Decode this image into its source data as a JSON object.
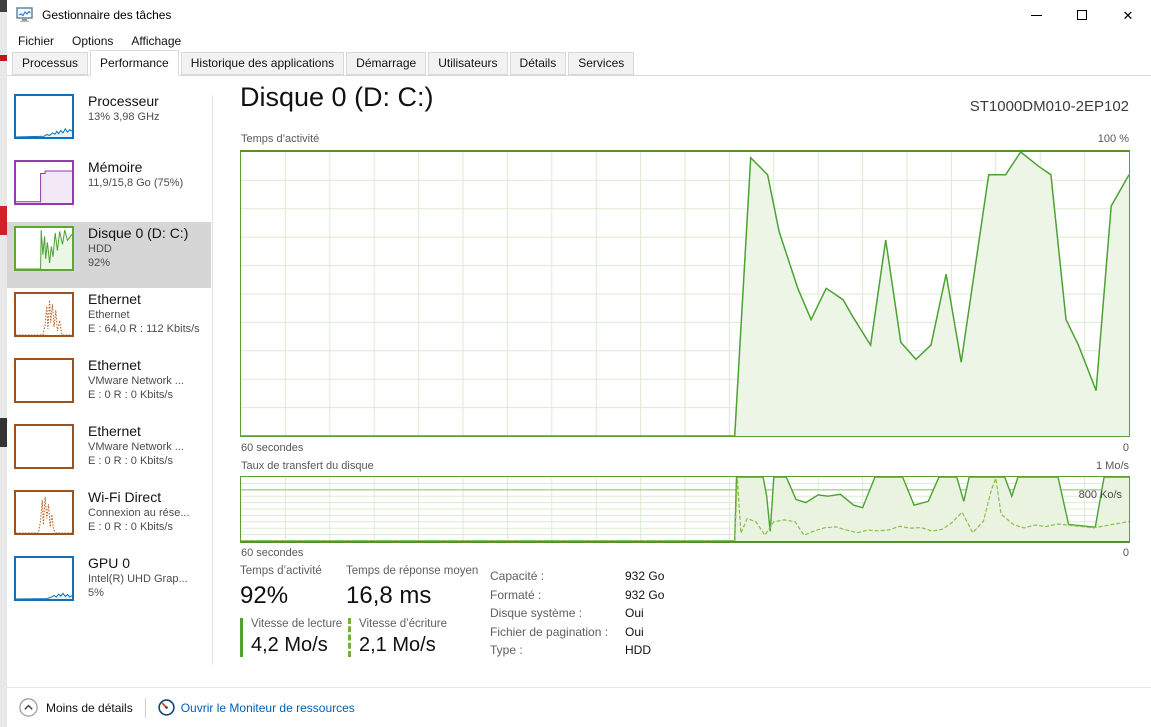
{
  "window": {
    "title": "Gestionnaire des tâches",
    "controls": {
      "minimize": "minimize",
      "maximize": "maximize",
      "close": "✕"
    }
  },
  "menu": {
    "items": [
      {
        "id": "fichier",
        "label": "Fichier"
      },
      {
        "id": "options",
        "label": "Options"
      },
      {
        "id": "affichage",
        "label": "Affichage"
      }
    ]
  },
  "tabs": {
    "items": [
      {
        "id": "processus",
        "label": "Processus",
        "active": false
      },
      {
        "id": "performance",
        "label": "Performance",
        "active": true
      },
      {
        "id": "historique",
        "label": "Historique des applications",
        "active": false
      },
      {
        "id": "demarrage",
        "label": "Démarrage",
        "active": false
      },
      {
        "id": "utilisateurs",
        "label": "Utilisateurs",
        "active": false
      },
      {
        "id": "details",
        "label": "Détails",
        "active": false
      },
      {
        "id": "services",
        "label": "Services",
        "active": false
      }
    ]
  },
  "sidebar": {
    "items": [
      {
        "id": "processeur",
        "title": "Processeur",
        "subs": [
          "13%  3,98 GHz"
        ],
        "accent": "#1071B8",
        "chart": "cpu_mini",
        "selected": false
      },
      {
        "id": "memoire",
        "title": "Mémoire",
        "subs": [
          "11,9/15,8 Go (75%)"
        ],
        "accent": "#9139AD",
        "chart": "mem_mini",
        "selected": false
      },
      {
        "id": "disque-0",
        "title": "Disque 0 (D: C:)",
        "subs": [
          "HDD",
          "92%"
        ],
        "accent": "#5EA732",
        "chart": "disk_mini",
        "selected": true
      },
      {
        "id": "ethernet-1",
        "title": "Ethernet",
        "subs": [
          "Ethernet",
          "E : 64,0 R : 112 Kbits/s"
        ],
        "accent": "#9C531F",
        "chart": "eth_mini",
        "selected": false
      },
      {
        "id": "ethernet-2",
        "title": "Ethernet",
        "subs": [
          "VMware Network ...",
          "E : 0 R : 0 Kbits/s"
        ],
        "accent": "#9C531F",
        "chart": "empty_mini",
        "selected": false
      },
      {
        "id": "ethernet-3",
        "title": "Ethernet",
        "subs": [
          "VMware Network ...",
          "E : 0 R : 0 Kbits/s"
        ],
        "accent": "#9C531F",
        "chart": "empty_mini",
        "selected": false
      },
      {
        "id": "wifi-direct",
        "title": "Wi-Fi Direct",
        "subs": [
          "Connexion au rése...",
          "E : 0 R : 0 Kbits/s"
        ],
        "accent": "#9C531F",
        "chart": "wifi_mini",
        "selected": false
      },
      {
        "id": "gpu-0",
        "title": "GPU 0",
        "subs": [
          "Intel(R) UHD Grap...",
          "5%"
        ],
        "accent": "#1071B8",
        "chart": "gpu_mini",
        "selected": false
      }
    ]
  },
  "main": {
    "title": "Disque 0 (D: C:)",
    "model": "ST1000DM010-2EP102",
    "chart1": {
      "label": "Temps d’activité",
      "max_label": "100 %",
      "x_label": "60 secondes",
      "x_right": "0"
    },
    "chart2": {
      "label": "Taux de transfert du disque",
      "max_label": "1 Mo/s",
      "inner_label": "800 Ko/s",
      "x_label": "60 secondes",
      "x_right": "0"
    },
    "stats": {
      "activity": {
        "label": "Temps d’activité",
        "value": "92%"
      },
      "response": {
        "label": "Temps de réponse moyen",
        "value": "16,8 ms"
      },
      "read": {
        "label": "Vitesse de lecture",
        "value": "4,2 Mo/s"
      },
      "write": {
        "label": "Vitesse d’écriture",
        "value": "2,1 Mo/s"
      },
      "details": [
        {
          "label": "Capacité :",
          "value": "932 Go"
        },
        {
          "label": "Formaté :",
          "value": "932 Go"
        },
        {
          "label": "Disque système :",
          "value": "Oui"
        },
        {
          "label": "Fichier de pagination :",
          "value": "Oui"
        },
        {
          "label": "Type :",
          "value": "HDD"
        }
      ]
    }
  },
  "footer": {
    "less_details": "Moins de détails",
    "open_monitor": "Ouvrir le Moniteur de ressources"
  },
  "colors": {
    "disk_green_line": "#4CA233",
    "disk_green_border": "#5D9E32",
    "disk_green_fill": "#EDF5E7",
    "grid_green": "#DCEBD2",
    "grid_green_strong": "#A9D191",
    "write_green": "#8CBF4F",
    "cpu_blue": "#1071B8",
    "mem_purple": "#9139AD",
    "eth_brown": "#9C531F",
    "selected_bg": "#D6D6D6",
    "link_blue": "#005FB8"
  },
  "chart_data": {
    "disk_activity": {
      "type": "area",
      "title": "Temps d’activité",
      "xlabel": "60 secondes",
      "ylim": [
        0,
        100
      ],
      "unit": "%",
      "grid": {
        "cols": 20,
        "rows": 10,
        "color": "#DCEBD2"
      },
      "line": "#4CA233",
      "fill": "#EDF5E7",
      "width": 1.5,
      "points": [
        [
          0,
          0
        ],
        [
          0.556,
          0
        ],
        [
          0.574,
          98
        ],
        [
          0.593,
          92
        ],
        [
          0.606,
          72
        ],
        [
          0.627,
          52
        ],
        [
          0.642,
          41
        ],
        [
          0.659,
          52
        ],
        [
          0.678,
          48
        ],
        [
          0.689,
          42
        ],
        [
          0.709,
          32
        ],
        [
          0.726,
          69
        ],
        [
          0.743,
          33
        ],
        [
          0.76,
          27
        ],
        [
          0.777,
          32
        ],
        [
          0.794,
          57
        ],
        [
          0.811,
          26
        ],
        [
          0.842,
          92
        ],
        [
          0.861,
          92
        ],
        [
          0.878,
          100
        ],
        [
          0.898,
          95
        ],
        [
          0.912,
          92
        ],
        [
          0.929,
          41
        ],
        [
          0.943,
          32
        ],
        [
          0.963,
          16
        ],
        [
          0.98,
          81
        ],
        [
          1,
          92
        ]
      ]
    },
    "disk_transfer": {
      "type": "line",
      "title": "Taux de transfert du disque",
      "xlabel": "60 secondes",
      "ylim": [
        0,
        1000
      ],
      "unit": "Ko/s",
      "grid": {
        "cols": 20,
        "rows": 10,
        "color": "#DCEBD2"
      },
      "ref_line": {
        "value": 800,
        "label": "800 Ko/s",
        "color": "#A9D191"
      },
      "series": [
        {
          "name": "Vitesse de lecture",
          "line": "#4CA233",
          "fill": "#E9F3DF",
          "width": 1.4,
          "points": [
            [
              0,
              0
            ],
            [
              0.556,
              0
            ],
            [
              0.558,
              1000
            ],
            [
              0.588,
              1000
            ],
            [
              0.592,
              700
            ],
            [
              0.596,
              150
            ],
            [
              0.6,
              1000
            ],
            [
              0.614,
              1000
            ],
            [
              0.625,
              650
            ],
            [
              0.636,
              600
            ],
            [
              0.65,
              720
            ],
            [
              0.661,
              700
            ],
            [
              0.675,
              730
            ],
            [
              0.69,
              560
            ],
            [
              0.7,
              520
            ],
            [
              0.714,
              1000
            ],
            [
              0.745,
              1000
            ],
            [
              0.758,
              560
            ],
            [
              0.774,
              620
            ],
            [
              0.786,
              1000
            ],
            [
              0.806,
              1000
            ],
            [
              0.814,
              620
            ],
            [
              0.82,
              1000
            ],
            [
              0.86,
              1000
            ],
            [
              0.868,
              700
            ],
            [
              0.875,
              1000
            ],
            [
              0.92,
              1000
            ],
            [
              0.932,
              260
            ],
            [
              0.952,
              230
            ],
            [
              0.962,
              215
            ],
            [
              0.972,
              1000
            ],
            [
              1,
              1000
            ]
          ]
        },
        {
          "name": "Vitesse d’écriture",
          "line": "#8CBF4F",
          "width": 1.2,
          "dash": "4,2",
          "points": [
            [
              0,
              0
            ],
            [
              0.556,
              0
            ],
            [
              0.559,
              980
            ],
            [
              0.563,
              120
            ],
            [
              0.57,
              350
            ],
            [
              0.58,
              300
            ],
            [
              0.59,
              90
            ],
            [
              0.6,
              300
            ],
            [
              0.612,
              330
            ],
            [
              0.624,
              300
            ],
            [
              0.634,
              90
            ],
            [
              0.646,
              160
            ],
            [
              0.658,
              210
            ],
            [
              0.67,
              220
            ],
            [
              0.682,
              170
            ],
            [
              0.694,
              130
            ],
            [
              0.706,
              170
            ],
            [
              0.718,
              160
            ],
            [
              0.73,
              175
            ],
            [
              0.742,
              230
            ],
            [
              0.754,
              200
            ],
            [
              0.766,
              210
            ],
            [
              0.778,
              155
            ],
            [
              0.79,
              185
            ],
            [
              0.8,
              280
            ],
            [
              0.812,
              450
            ],
            [
              0.824,
              130
            ],
            [
              0.836,
              310
            ],
            [
              0.845,
              800
            ],
            [
              0.85,
              980
            ],
            [
              0.856,
              420
            ],
            [
              0.87,
              255
            ],
            [
              0.882,
              205
            ],
            [
              0.894,
              250
            ],
            [
              0.906,
              225
            ],
            [
              0.92,
              265
            ],
            [
              0.94,
              235
            ],
            [
              0.96,
              205
            ],
            [
              0.98,
              255
            ],
            [
              1,
              305
            ]
          ]
        }
      ]
    },
    "cpu_mini": {
      "type": "area",
      "ylim": [
        0,
        100
      ],
      "line": "#1071B8",
      "fill": "#E8F2F9",
      "width": 1,
      "points": [
        [
          0,
          0
        ],
        [
          0.5,
          2
        ],
        [
          0.55,
          6
        ],
        [
          0.6,
          4
        ],
        [
          0.65,
          10
        ],
        [
          0.7,
          7
        ],
        [
          0.73,
          14
        ],
        [
          0.76,
          8
        ],
        [
          0.8,
          16
        ],
        [
          0.84,
          10
        ],
        [
          0.88,
          20
        ],
        [
          0.92,
          12
        ],
        [
          0.96,
          18
        ],
        [
          1,
          14
        ]
      ]
    },
    "mem_mini": {
      "type": "area",
      "ylim": [
        0,
        100
      ],
      "line": "#9139AD",
      "fill": "#F2E8F6",
      "width": 1,
      "points": [
        [
          0,
          3
        ],
        [
          0.44,
          3
        ],
        [
          0.44,
          72
        ],
        [
          0.52,
          72
        ],
        [
          0.52,
          78
        ],
        [
          1,
          78
        ]
      ]
    },
    "disk_mini": {
      "type": "area",
      "ylim": [
        0,
        100
      ],
      "line": "#4CA233",
      "fill": "#EDF5E7",
      "width": 1,
      "points": [
        [
          0,
          0
        ],
        [
          0.44,
          0
        ],
        [
          0.45,
          95
        ],
        [
          0.48,
          35
        ],
        [
          0.51,
          80
        ],
        [
          0.53,
          25
        ],
        [
          0.56,
          65
        ],
        [
          0.6,
          15
        ],
        [
          0.63,
          55
        ],
        [
          0.66,
          30
        ],
        [
          0.7,
          88
        ],
        [
          0.74,
          45
        ],
        [
          0.78,
          92
        ],
        [
          0.83,
          60
        ],
        [
          0.87,
          95
        ],
        [
          0.92,
          70
        ],
        [
          1,
          85
        ]
      ]
    },
    "eth_mini": {
      "type": "line",
      "ylim": [
        0,
        100
      ],
      "line": "#B35C1E",
      "width": 1,
      "dash": "1.5,1.5",
      "points": [
        [
          0,
          0
        ],
        [
          0.48,
          0
        ],
        [
          0.52,
          25
        ],
        [
          0.55,
          70
        ],
        [
          0.57,
          15
        ],
        [
          0.6,
          85
        ],
        [
          0.62,
          30
        ],
        [
          0.65,
          75
        ],
        [
          0.68,
          20
        ],
        [
          0.71,
          60
        ],
        [
          0.74,
          10
        ],
        [
          0.78,
          35
        ],
        [
          0.82,
          0
        ],
        [
          1,
          0
        ]
      ]
    },
    "empty_mini": {
      "type": "line",
      "ylim": [
        0,
        100
      ],
      "line": "#B35C1E",
      "width": 1,
      "points": []
    },
    "wifi_mini": {
      "type": "line",
      "ylim": [
        0,
        100
      ],
      "line": "#B35C1E",
      "width": 1,
      "dash": "1.5,1.5",
      "points": [
        [
          0,
          0
        ],
        [
          0.4,
          0
        ],
        [
          0.44,
          30
        ],
        [
          0.47,
          80
        ],
        [
          0.49,
          20
        ],
        [
          0.52,
          88
        ],
        [
          0.55,
          35
        ],
        [
          0.58,
          70
        ],
        [
          0.61,
          15
        ],
        [
          0.64,
          45
        ],
        [
          0.67,
          8
        ],
        [
          0.72,
          0
        ],
        [
          1,
          0
        ]
      ]
    },
    "gpu_mini": {
      "type": "area",
      "ylim": [
        0,
        100
      ],
      "line": "#1071B8",
      "fill": "#E8F2F9",
      "width": 1,
      "points": [
        [
          0,
          0
        ],
        [
          0.55,
          1
        ],
        [
          0.62,
          4
        ],
        [
          0.68,
          9
        ],
        [
          0.72,
          5
        ],
        [
          0.76,
          12
        ],
        [
          0.8,
          7
        ],
        [
          0.84,
          14
        ],
        [
          0.88,
          6
        ],
        [
          0.92,
          11
        ],
        [
          0.96,
          5
        ],
        [
          1,
          8
        ]
      ]
    }
  }
}
